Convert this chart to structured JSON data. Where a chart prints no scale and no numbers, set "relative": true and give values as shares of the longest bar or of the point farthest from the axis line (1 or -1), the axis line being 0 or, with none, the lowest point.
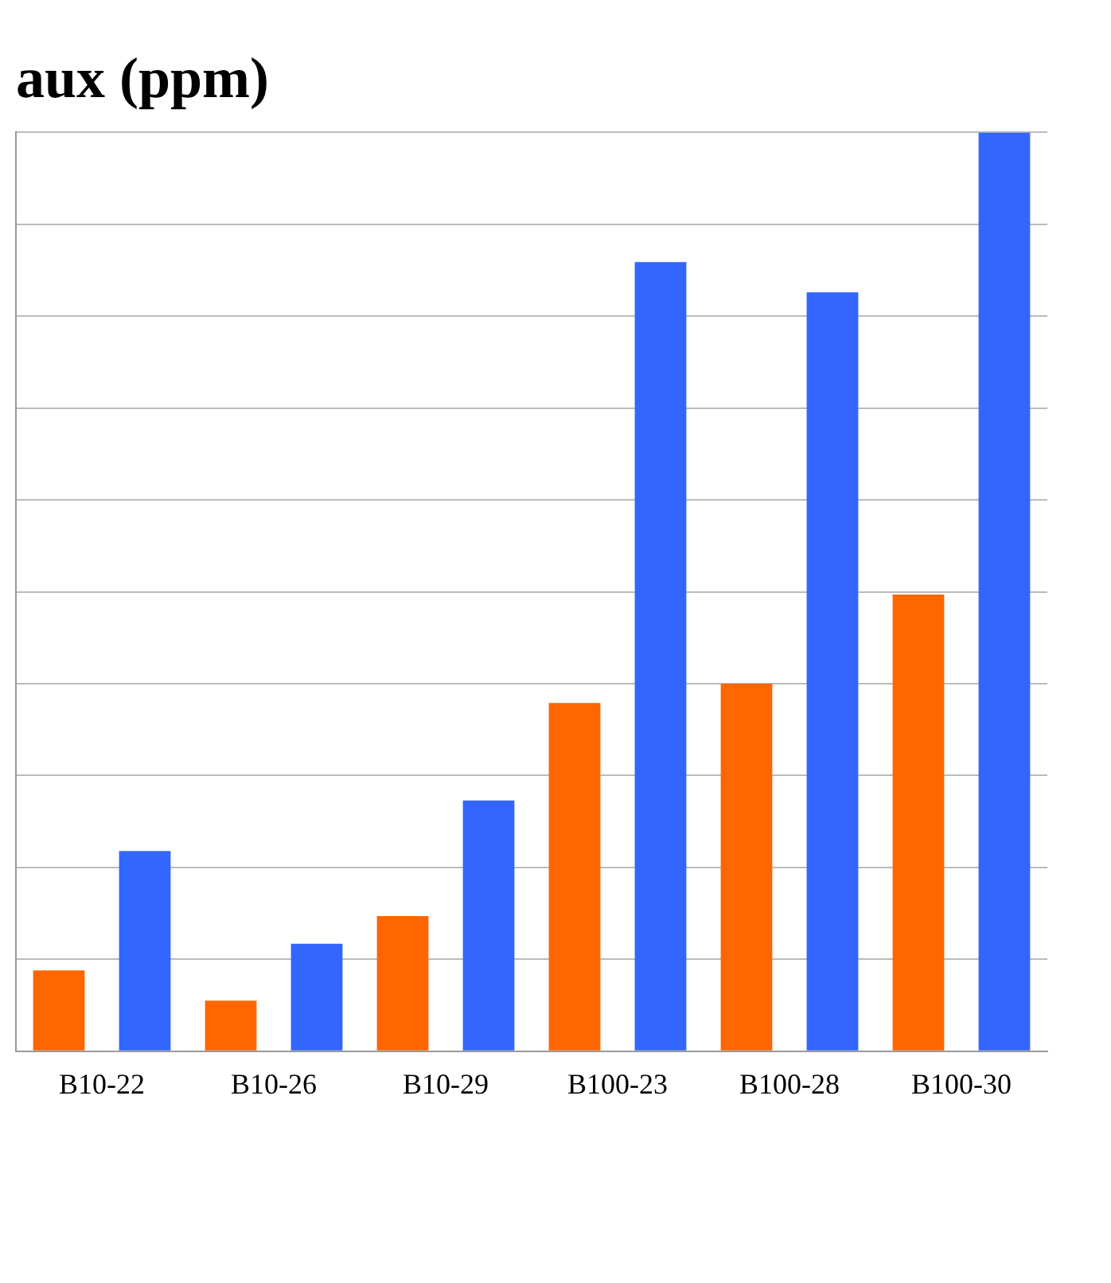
{
  "chart_data": {
    "type": "bar",
    "title": "aux (ppm)",
    "relative": true,
    "grid": "y",
    "categories": [
      "B10-22",
      "B10-26",
      "B10-29",
      "B100-23",
      "B100-28",
      "B100-30"
    ],
    "series": [
      {
        "color": "#ff6600",
        "values": [
          0.088,
          0.055,
          0.147,
          0.379,
          0.4,
          0.497
        ]
      },
      {
        "color": "#3366ff",
        "values": [
          0.218,
          0.117,
          0.273,
          0.859,
          0.826,
          1
        ]
      }
    ]
  }
}
